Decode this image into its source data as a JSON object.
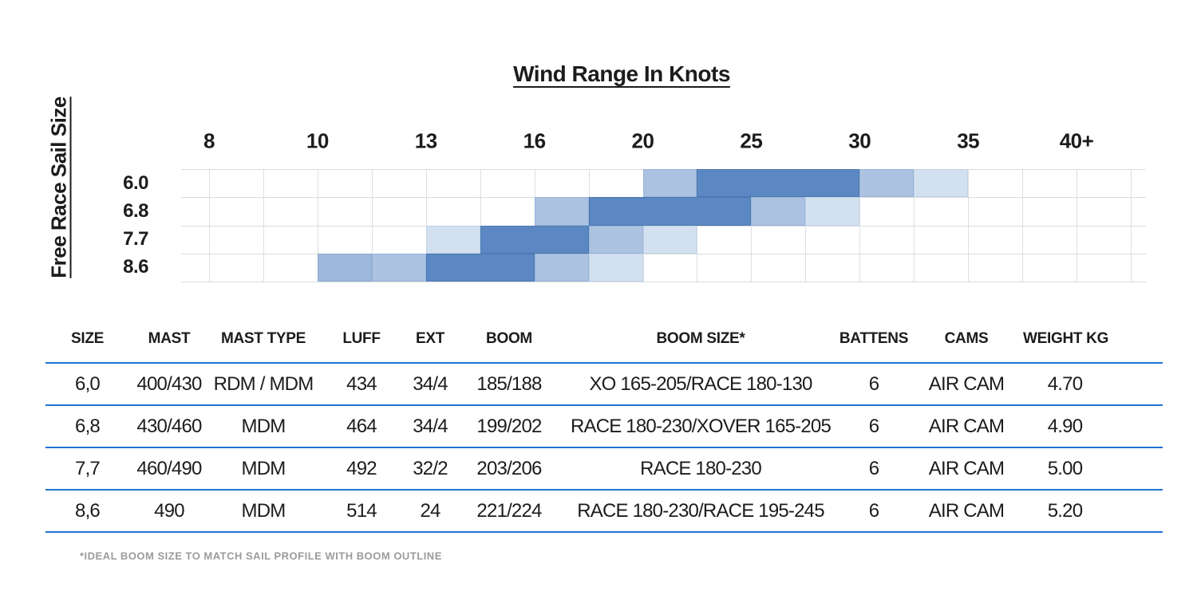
{
  "chart_data": [
    {
      "type": "heatmap",
      "title": "Wind Range In Knots",
      "ylabel": "Free Race Sail Size",
      "x_axis": {
        "unit": "knots",
        "tick_labels": [
          "8",
          "10",
          "13",
          "16",
          "20",
          "25",
          "30",
          "35",
          "40+"
        ],
        "tick_line_indices": [
          0,
          2,
          4,
          6,
          8,
          10,
          12,
          14,
          16
        ]
      },
      "knots_at_lines": [
        8,
        9,
        10,
        11.5,
        13,
        14.5,
        16,
        18,
        20,
        22.5,
        25,
        27.5,
        30,
        32.5,
        35,
        37.5,
        40
      ],
      "rows": [
        "6.0",
        "6.8",
        "7.7",
        "8.6"
      ],
      "n_cols": 17,
      "grid_on": true,
      "shades": {
        "dark": "#5b88c2",
        "medium": "#abc2e1",
        "medium2": "#9db8da",
        "light": "#d3e0ef"
      },
      "shade_borders": {
        "dark": "#4c79b2",
        "medium": "#9ab4d8",
        "medium2": "#8ca9cf",
        "light": "#c2d3e8"
      },
      "grid_color": "#dcdfe4",
      "cells": [
        {
          "row": "6.0",
          "line_start": 8,
          "line_span": 1,
          "shade": "medium",
          "knots_from": 20,
          "knots_to": 22.5
        },
        {
          "row": "6.0",
          "line_start": 9,
          "line_span": 3,
          "shade": "dark",
          "knots_from": 22.5,
          "knots_to": 30
        },
        {
          "row": "6.0",
          "line_start": 12,
          "line_span": 1,
          "shade": "medium",
          "knots_from": 30,
          "knots_to": 32.5
        },
        {
          "row": "6.0",
          "line_start": 13,
          "line_span": 1,
          "shade": "light",
          "knots_from": 32.5,
          "knots_to": 35
        },
        {
          "row": "6.8",
          "line_start": 6,
          "line_span": 1,
          "shade": "medium",
          "knots_from": 16,
          "knots_to": 18
        },
        {
          "row": "6.8",
          "line_start": 7,
          "line_span": 3,
          "shade": "dark",
          "knots_from": 18,
          "knots_to": 25
        },
        {
          "row": "6.8",
          "line_start": 10,
          "line_span": 1,
          "shade": "medium",
          "knots_from": 25,
          "knots_to": 27.5
        },
        {
          "row": "6.8",
          "line_start": 11,
          "line_span": 1,
          "shade": "light",
          "knots_from": 27.5,
          "knots_to": 30
        },
        {
          "row": "7.7",
          "line_start": 4,
          "line_span": 1,
          "shade": "light",
          "knots_from": 13,
          "knots_to": 14.5
        },
        {
          "row": "7.7",
          "line_start": 5,
          "line_span": 2,
          "shade": "dark",
          "knots_from": 14.5,
          "knots_to": 18
        },
        {
          "row": "7.7",
          "line_start": 7,
          "line_span": 1,
          "shade": "medium",
          "knots_from": 18,
          "knots_to": 20
        },
        {
          "row": "7.7",
          "line_start": 8,
          "line_span": 1,
          "shade": "light",
          "knots_from": 20,
          "knots_to": 22.5
        },
        {
          "row": "8.6",
          "line_start": 2,
          "line_span": 1,
          "shade": "medium2",
          "knots_from": 10,
          "knots_to": 11.5
        },
        {
          "row": "8.6",
          "line_start": 3,
          "line_span": 1,
          "shade": "medium",
          "knots_from": 11.5,
          "knots_to": 13
        },
        {
          "row": "8.6",
          "line_start": 4,
          "line_span": 2,
          "shade": "dark",
          "knots_from": 13,
          "knots_to": 16
        },
        {
          "row": "8.6",
          "line_start": 6,
          "line_span": 1,
          "shade": "medium",
          "knots_from": 16,
          "knots_to": 18
        },
        {
          "row": "8.6",
          "line_start": 7,
          "line_span": 1,
          "shade": "light",
          "knots_from": 18,
          "knots_to": 20
        }
      ]
    },
    {
      "type": "table",
      "accent_line_color": "#2173d4",
      "columns": [
        "SIZE",
        "MAST",
        "MAST TYPE",
        "LUFF",
        "EXT",
        "BOOM",
        "BOOM SIZE*",
        "BATTENS",
        "CAMS",
        "WEIGHT KG"
      ],
      "rows": [
        [
          "6,0",
          "400/430",
          "RDM / MDM",
          "434",
          "34/4",
          "185/188",
          "XO 165-205/RACE 180-130",
          "6",
          "AIR CAM",
          "4.70"
        ],
        [
          "6,8",
          "430/460",
          "MDM",
          "464",
          "34/4",
          "199/202",
          "RACE 180-230/XOVER 165-205",
          "6",
          "AIR CAM",
          "4.90"
        ],
        [
          "7,7",
          "460/490",
          "MDM",
          "492",
          "32/2",
          "203/206",
          "RACE 180-230",
          "6",
          "AIR CAM",
          "5.00"
        ],
        [
          "8,6",
          "490",
          "MDM",
          "514",
          "24",
          "221/224",
          "RACE 180-230/RACE 195-245",
          "6",
          "AIR CAM",
          "5.20"
        ]
      ],
      "footnote": "*IDEAL BOOM SIZE TO MATCH SAIL PROFILE WITH BOOM OUTLINE"
    }
  ]
}
